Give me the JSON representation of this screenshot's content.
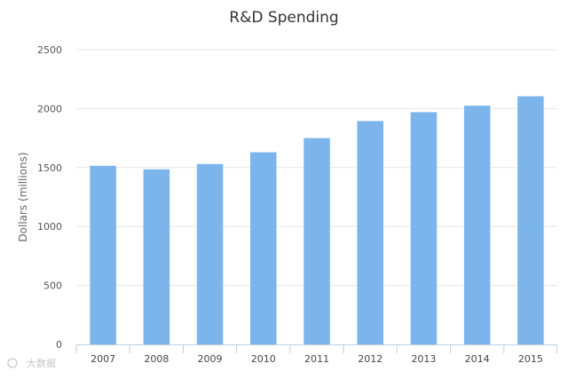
{
  "chart_data": {
    "type": "bar",
    "title": "R&D Spending",
    "xlabel": "",
    "ylabel": "Dollars (millions)",
    "categories": [
      "2007",
      "2008",
      "2009",
      "2010",
      "2011",
      "2012",
      "2013",
      "2014",
      "2015"
    ],
    "values": [
      1515,
      1485,
      1530,
      1630,
      1750,
      1895,
      1970,
      2025,
      2105
    ],
    "ylim": [
      0,
      2500
    ],
    "yticks": [
      0,
      500,
      1000,
      1500,
      2000,
      2500
    ],
    "grid": true,
    "legend": "none",
    "bar_color": "#7cb5ec"
  },
  "watermark": "大数据"
}
